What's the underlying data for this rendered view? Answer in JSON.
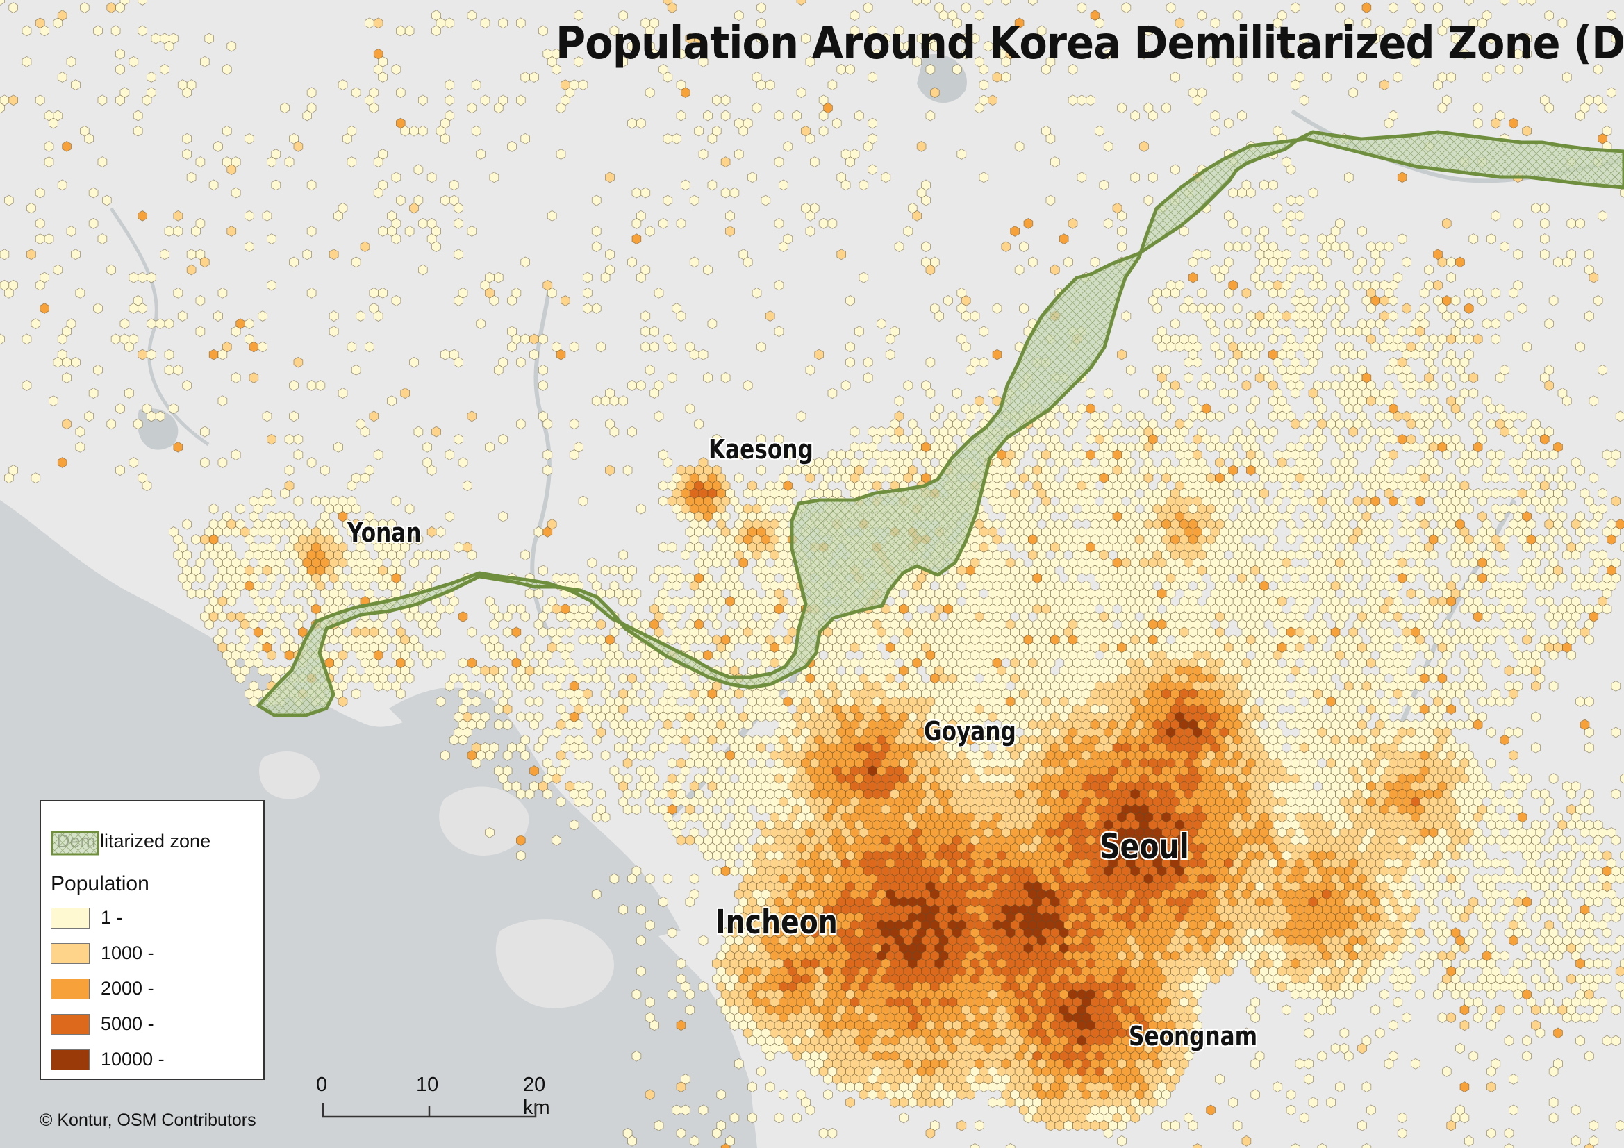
{
  "title": "Population Around Korea Demilitarized Zone (DMZ)",
  "colors": {
    "background": "#e9e9e9",
    "sea": "#cfd3d5",
    "dmz_fill": "#c9d9b8",
    "dmz_stroke": "#6f8f3e",
    "text": "#111111"
  },
  "cities": [
    {
      "name": "Kaesong"
    },
    {
      "name": "Yonan"
    },
    {
      "name": "Goyang"
    },
    {
      "name": "Seoul"
    },
    {
      "name": "Incheon"
    },
    {
      "name": "Seongnam"
    }
  ],
  "legend": {
    "dmz_label": "Demilitarized zone",
    "population_heading": "Population",
    "classes": [
      {
        "label": "1 -",
        "color": "#fff9d2"
      },
      {
        "label": "1000 -",
        "color": "#fed48b"
      },
      {
        "label": "2000 -",
        "color": "#f7a13a"
      },
      {
        "label": "5000 -",
        "color": "#dd6a1c"
      },
      {
        "label": "10000 -",
        "color": "#9a3a09"
      }
    ]
  },
  "scalebar": {
    "labels": [
      "0",
      "10",
      "20 km"
    ]
  },
  "credit": "© Kontur, OSM Contributors"
}
